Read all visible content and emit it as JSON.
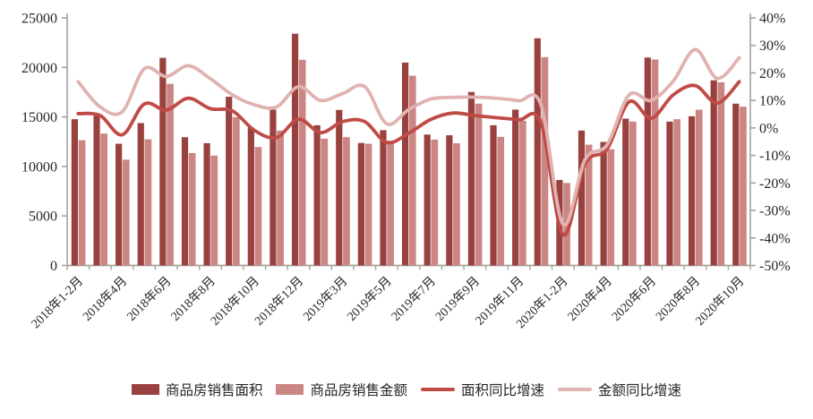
{
  "chart_data": {
    "type": "combo-bar-line",
    "title": "",
    "categories": [
      "2018年1-2月",
      "2018年3月",
      "2018年4月",
      "2018年5月",
      "2018年6月",
      "2018年7月",
      "2018年8月",
      "2018年9月",
      "2018年10月",
      "2018年11月",
      "2018年12月",
      "2019年1-2月",
      "2019年3月",
      "2019年4月",
      "2019年5月",
      "2019年6月",
      "2019年7月",
      "2019年8月",
      "2019年9月",
      "2019年10月",
      "2019年11月",
      "2019年12月",
      "2020年1-2月",
      "2020年3月",
      "2020年4月",
      "2020年5月",
      "2020年6月",
      "2020年7月",
      "2020年8月",
      "2020年9月",
      "2020年10月"
    ],
    "x_tick_labels": [
      "2018年1-2月",
      "2018年4月",
      "2018年6月",
      "2018年8月",
      "2018年10月",
      "2018年12月",
      "2019年3月",
      "2019年5月",
      "2019年7月",
      "2019年9月",
      "2019年11月",
      "2020年1-2月",
      "2020年4月",
      "2020年6月",
      "2020年8月",
      "2020年10月"
    ],
    "x_label_every": 2,
    "series": [
      {
        "name": "商品房销售面积",
        "type": "bar",
        "axis": "left",
        "color": "#99413e",
        "values": [
          14770,
          15130,
          12290,
          14380,
          20970,
          12950,
          12350,
          17040,
          13920,
          15740,
          23400,
          14160,
          15700,
          12370,
          13660,
          20490,
          13220,
          13150,
          17520,
          14160,
          15740,
          22940,
          8630,
          13620,
          12470,
          14830,
          21000,
          14530,
          15070,
          18700,
          16340
        ]
      },
      {
        "name": "商品房销售金额",
        "type": "bar",
        "axis": "left",
        "color": "#cb8583",
        "values": [
          12650,
          13320,
          10680,
          12740,
          18340,
          11350,
          11100,
          14980,
          11960,
          13620,
          20770,
          12800,
          12960,
          12290,
          12610,
          19160,
          12710,
          12340,
          16340,
          12990,
          14620,
          21040,
          8330,
          12200,
          11740,
          14530,
          20800,
          14770,
          15730,
          18500,
          16040
        ]
      },
      {
        "name": "面积同比增速",
        "type": "line",
        "axis": "right",
        "color": "#bf4b47",
        "values": [
          5.2,
          4.5,
          -2.5,
          8.7,
          6.5,
          10.8,
          7.0,
          6.2,
          -0.9,
          -3.5,
          3.2,
          -1.7,
          2.3,
          2.3,
          -5.3,
          -1.9,
          3.1,
          5.4,
          4.5,
          3.7,
          3.0,
          1.9,
          -38.8,
          -13.1,
          -7.7,
          9.5,
          3.5,
          12.0,
          15.4,
          9.0,
          16.8
        ]
      },
      {
        "name": "金额同比增速",
        "type": "line",
        "axis": "right",
        "color": "#e0b3b1",
        "values": [
          16.8,
          7.6,
          5.9,
          21.5,
          18.7,
          22.6,
          17.9,
          12.0,
          8.4,
          7.6,
          15.0,
          10.0,
          12.5,
          15.0,
          1.5,
          6.7,
          10.5,
          11.1,
          11.2,
          10.8,
          9.9,
          8.4,
          -35.0,
          -11.5,
          -6.1,
          12.0,
          10.0,
          17.0,
          28.5,
          18.0,
          25.5
        ]
      }
    ],
    "left_axis": {
      "min": 0,
      "max": 25000,
      "tick_labels": [
        "25000",
        "20000",
        "15000",
        "10000",
        "5000",
        "0"
      ]
    },
    "right_axis": {
      "min": -50,
      "max": 40,
      "tick_labels": [
        "40%",
        "30%",
        "20%",
        "10%",
        "0%",
        "-10%",
        "-20%",
        "-30%",
        "-40%",
        "-50%"
      ]
    },
    "style": {
      "axis_color": "#a3a3a3",
      "text_color": "#262626",
      "background": "#ffffff",
      "grid": "off",
      "legend_position": "bottom"
    }
  }
}
